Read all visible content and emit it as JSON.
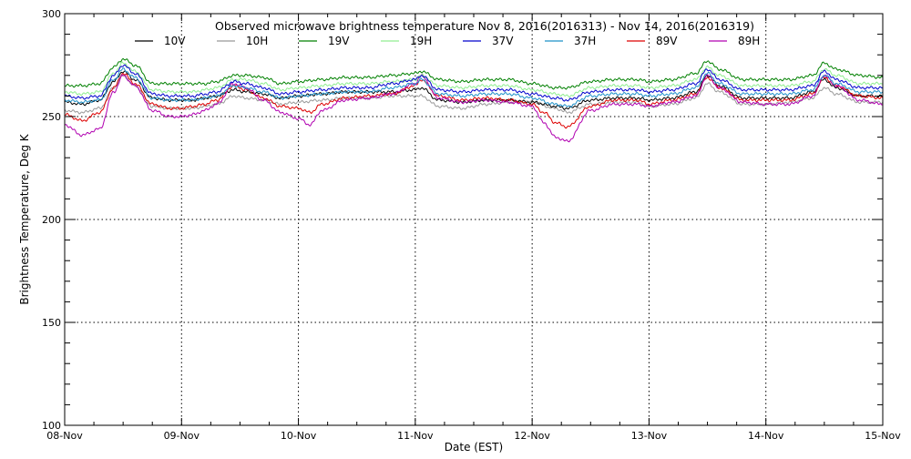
{
  "chart_data": {
    "type": "line",
    "title": "Observed microwave brightness temperature Nov  8, 2016(2016313) - Nov 14, 2016(2016319)",
    "xlabel": "Date (EST)",
    "ylabel": "Brightness Temperature, Deg K",
    "x_ticks": [
      "08-Nov",
      "09-Nov",
      "10-Nov",
      "11-Nov",
      "12-Nov",
      "13-Nov",
      "14-Nov",
      "15-Nov"
    ],
    "xlim": [
      0,
      7
    ],
    "ylim": [
      100,
      300
    ],
    "y_ticks": [
      100,
      150,
      200,
      250,
      300
    ],
    "grid": true,
    "legend_position": "top",
    "series": [
      {
        "name": "10V",
        "color": "#000000",
        "x": [
          0,
          0.15,
          0.3,
          0.42,
          0.5,
          0.6,
          0.75,
          0.9,
          1.0,
          1.1,
          1.2,
          1.3,
          1.45,
          1.55,
          1.7,
          1.85,
          2.0,
          2.2,
          2.4,
          2.6,
          2.8,
          3.0,
          3.05,
          3.2,
          3.4,
          3.6,
          3.8,
          4.0,
          4.2,
          4.3,
          4.5,
          4.7,
          4.9,
          5.0,
          5.2,
          5.4,
          5.5,
          5.6,
          5.8,
          6.0,
          6.2,
          6.4,
          6.5,
          6.6,
          6.8,
          7.0
        ],
        "y": [
          257,
          256,
          258,
          267,
          272,
          268,
          259,
          258,
          258,
          258,
          259,
          260,
          263,
          262,
          261,
          259,
          260,
          261,
          262,
          262,
          262,
          263,
          264,
          258,
          257,
          258,
          258,
          257,
          255,
          254,
          258,
          259,
          259,
          258,
          259,
          262,
          270,
          265,
          259,
          259,
          259,
          262,
          268,
          264,
          260,
          260
        ]
      },
      {
        "name": "10H",
        "color": "#999999",
        "x": [
          0,
          0.15,
          0.3,
          0.42,
          0.5,
          0.6,
          0.75,
          0.9,
          1.0,
          1.1,
          1.2,
          1.3,
          1.45,
          1.55,
          1.7,
          1.85,
          2.0,
          2.2,
          2.4,
          2.6,
          2.8,
          3.0,
          3.05,
          3.2,
          3.4,
          3.6,
          3.8,
          4.0,
          4.2,
          4.3,
          4.5,
          4.7,
          4.9,
          5.0,
          5.2,
          5.4,
          5.5,
          5.6,
          5.8,
          6.0,
          6.2,
          6.4,
          6.5,
          6.6,
          6.8,
          7.0
        ],
        "y": [
          253,
          252,
          254,
          264,
          270,
          265,
          255,
          254,
          254,
          254,
          255,
          256,
          260,
          259,
          258,
          256,
          257,
          258,
          259,
          259,
          260,
          260,
          260,
          255,
          254,
          256,
          257,
          257,
          254,
          252,
          256,
          257,
          257,
          255,
          256,
          259,
          266,
          262,
          256,
          256,
          257,
          259,
          264,
          261,
          257,
          257
        ]
      },
      {
        "name": "19V",
        "color": "#008000",
        "x": [
          0,
          0.15,
          0.3,
          0.42,
          0.5,
          0.6,
          0.75,
          0.9,
          1.0,
          1.1,
          1.2,
          1.3,
          1.45,
          1.55,
          1.7,
          1.85,
          2.0,
          2.2,
          2.4,
          2.6,
          2.8,
          3.0,
          3.05,
          3.2,
          3.4,
          3.6,
          3.8,
          4.0,
          4.2,
          4.3,
          4.5,
          4.7,
          4.9,
          5.0,
          5.2,
          5.4,
          5.5,
          5.6,
          5.8,
          6.0,
          6.2,
          6.4,
          6.5,
          6.6,
          6.8,
          7.0
        ],
        "y": [
          265,
          265,
          266,
          274,
          278,
          275,
          266,
          266,
          266,
          266,
          266,
          267,
          270,
          270,
          269,
          266,
          267,
          268,
          269,
          269,
          270,
          271,
          272,
          268,
          267,
          268,
          268,
          266,
          264,
          264,
          267,
          268,
          268,
          267,
          268,
          271,
          277,
          273,
          268,
          268,
          268,
          270,
          276,
          273,
          270,
          269
        ]
      },
      {
        "name": "19H",
        "color": "#90ee90",
        "x": [
          0,
          0.15,
          0.3,
          0.42,
          0.5,
          0.6,
          0.75,
          0.9,
          1.0,
          1.1,
          1.2,
          1.3,
          1.45,
          1.55,
          1.7,
          1.85,
          2.0,
          2.2,
          2.4,
          2.6,
          2.8,
          3.0,
          3.05,
          3.2,
          3.4,
          3.6,
          3.8,
          4.0,
          4.2,
          4.3,
          4.5,
          4.7,
          4.9,
          5.0,
          5.2,
          5.4,
          5.5,
          5.6,
          5.8,
          6.0,
          6.2,
          6.4,
          6.5,
          6.6,
          6.8,
          7.0
        ],
        "y": [
          262,
          261,
          262,
          271,
          276,
          272,
          263,
          262,
          262,
          262,
          263,
          264,
          268,
          268,
          266,
          263,
          264,
          265,
          266,
          266,
          267,
          268,
          270,
          265,
          264,
          265,
          265,
          263,
          261,
          260,
          264,
          265,
          265,
          264,
          265,
          268,
          274,
          270,
          265,
          265,
          265,
          267,
          273,
          270,
          266,
          266
        ]
      },
      {
        "name": "37V",
        "color": "#0000cc",
        "x": [
          0,
          0.15,
          0.3,
          0.42,
          0.5,
          0.6,
          0.75,
          0.9,
          1.0,
          1.1,
          1.2,
          1.3,
          1.45,
          1.55,
          1.7,
          1.85,
          2.0,
          2.2,
          2.4,
          2.6,
          2.8,
          3.0,
          3.05,
          3.2,
          3.4,
          3.6,
          3.8,
          4.0,
          4.2,
          4.3,
          4.5,
          4.7,
          4.9,
          5.0,
          5.2,
          5.4,
          5.5,
          5.6,
          5.8,
          6.0,
          6.2,
          6.4,
          6.5,
          6.6,
          6.8,
          7.0
        ],
        "y": [
          260,
          259,
          260,
          270,
          275,
          271,
          261,
          260,
          260,
          260,
          261,
          262,
          267,
          266,
          264,
          261,
          262,
          263,
          264,
          264,
          266,
          268,
          270,
          263,
          262,
          263,
          263,
          261,
          259,
          258,
          262,
          263,
          263,
          262,
          263,
          266,
          273,
          268,
          263,
          263,
          263,
          265,
          272,
          268,
          264,
          264
        ]
      },
      {
        "name": "37H",
        "color": "#1e90c8",
        "x": [
          0,
          0.15,
          0.3,
          0.42,
          0.5,
          0.6,
          0.75,
          0.9,
          1.0,
          1.1,
          1.2,
          1.3,
          1.45,
          1.55,
          1.7,
          1.85,
          2.0,
          2.2,
          2.4,
          2.6,
          2.8,
          3.0,
          3.05,
          3.2,
          3.4,
          3.6,
          3.8,
          4.0,
          4.2,
          4.3,
          4.5,
          4.7,
          4.9,
          5.0,
          5.2,
          5.4,
          5.5,
          5.6,
          5.8,
          6.0,
          6.2,
          6.4,
          6.5,
          6.6,
          6.8,
          7.0
        ],
        "y": [
          258,
          257,
          258,
          268,
          273,
          269,
          259,
          258,
          258,
          258,
          259,
          260,
          265,
          264,
          262,
          259,
          260,
          261,
          262,
          262,
          264,
          266,
          268,
          261,
          260,
          261,
          261,
          259,
          256,
          255,
          260,
          261,
          261,
          260,
          261,
          264,
          271,
          266,
          261,
          261,
          261,
          263,
          270,
          266,
          262,
          262
        ]
      },
      {
        "name": "89V",
        "color": "#dd0000",
        "x": [
          0,
          0.15,
          0.3,
          0.42,
          0.5,
          0.6,
          0.75,
          0.9,
          1.0,
          1.1,
          1.2,
          1.3,
          1.45,
          1.55,
          1.7,
          1.85,
          2.0,
          2.1,
          2.2,
          2.4,
          2.6,
          2.8,
          3.0,
          3.05,
          3.2,
          3.4,
          3.6,
          3.8,
          4.0,
          4.1,
          4.2,
          4.3,
          4.5,
          4.7,
          4.9,
          5.0,
          5.2,
          5.4,
          5.5,
          5.6,
          5.8,
          6.0,
          6.2,
          6.4,
          6.5,
          6.6,
          6.8,
          7.0
        ],
        "y": [
          251,
          248,
          252,
          264,
          271,
          266,
          256,
          254,
          254,
          255,
          256,
          258,
          265,
          263,
          259,
          255,
          254,
          252,
          256,
          259,
          260,
          261,
          265,
          268,
          260,
          258,
          259,
          258,
          256,
          252,
          247,
          245,
          255,
          258,
          258,
          256,
          258,
          261,
          269,
          264,
          258,
          258,
          258,
          261,
          269,
          265,
          260,
          259
        ]
      },
      {
        "name": "89H",
        "color": "#b000b0",
        "x": [
          0,
          0.15,
          0.3,
          0.42,
          0.5,
          0.6,
          0.75,
          0.9,
          1.0,
          1.1,
          1.2,
          1.3,
          1.45,
          1.55,
          1.7,
          1.85,
          2.0,
          2.1,
          2.2,
          2.4,
          2.6,
          2.8,
          3.0,
          3.05,
          3.2,
          3.4,
          3.6,
          3.8,
          4.0,
          4.1,
          4.2,
          4.3,
          4.5,
          4.7,
          4.9,
          5.0,
          5.2,
          5.4,
          5.5,
          5.6,
          5.8,
          6.0,
          6.2,
          6.4,
          6.5,
          6.6,
          6.8,
          7.0
        ],
        "y": [
          246,
          241,
          244,
          262,
          270,
          265,
          253,
          250,
          250,
          251,
          253,
          256,
          266,
          264,
          258,
          252,
          249,
          246,
          253,
          258,
          259,
          261,
          266,
          270,
          259,
          257,
          258,
          257,
          255,
          247,
          240,
          238,
          253,
          256,
          256,
          255,
          257,
          260,
          270,
          264,
          257,
          256,
          256,
          260,
          270,
          265,
          258,
          256
        ]
      }
    ]
  }
}
